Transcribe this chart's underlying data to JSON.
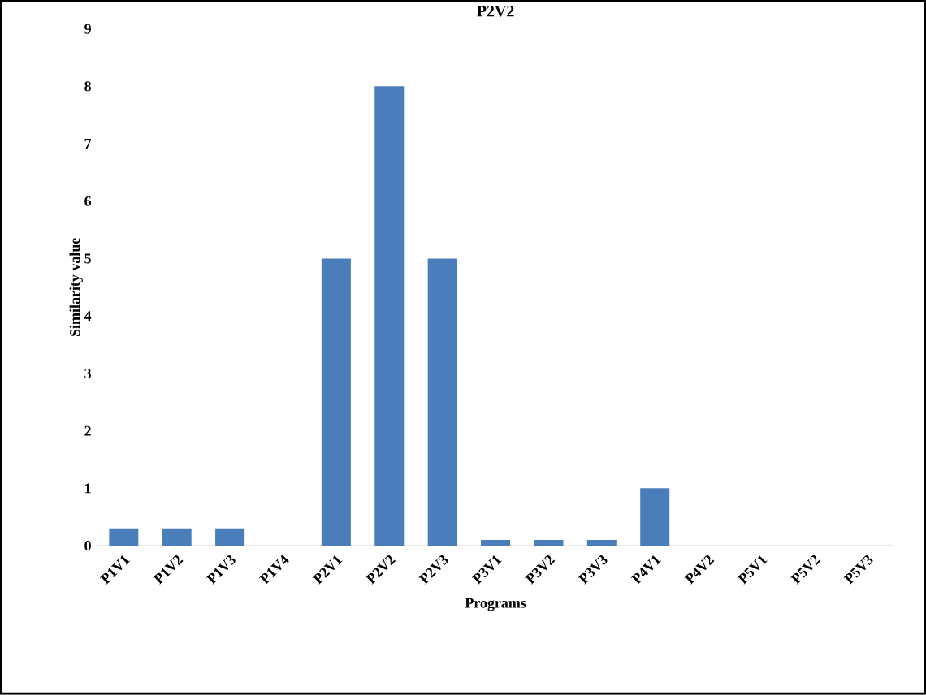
{
  "chart_data": {
    "type": "bar",
    "title": "P2V2",
    "xlabel": "Programs",
    "ylabel": "Similarity value",
    "categories": [
      "P1V1",
      "P1V2",
      "P1V3",
      "P1V4",
      "P2V1",
      "P2V2",
      "P2V3",
      "P3V1",
      "P3V2",
      "P3V3",
      "P4V1",
      "P4V2",
      "P5V1",
      "P5V2",
      "P5V3"
    ],
    "values": [
      0.3,
      0.3,
      0.3,
      0,
      5,
      8,
      5,
      0.1,
      0.1,
      0.1,
      1,
      0,
      0,
      0,
      0
    ],
    "color": "#4a7ebb",
    "ylim": [
      0,
      9
    ],
    "yticks": [
      0,
      1,
      2,
      3,
      4,
      5,
      6,
      7,
      8,
      9
    ]
  }
}
